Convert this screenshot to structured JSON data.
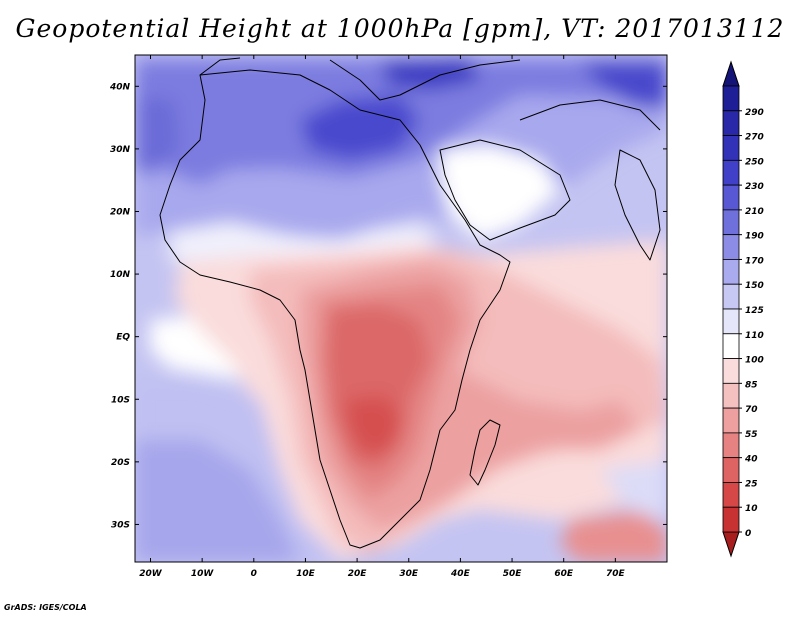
{
  "title": "Geopotential Height at 1000hPa [gpm], VT: 2017013112",
  "credit": "GrADS: IGES/COLA",
  "map": {
    "projection": "latlon",
    "lon_range": [
      -23,
      80
    ],
    "lat_range": [
      -36,
      45
    ],
    "lat_ticks": [
      {
        "value": 40,
        "label": "40N"
      },
      {
        "value": 30,
        "label": "30N"
      },
      {
        "value": 20,
        "label": "20N"
      },
      {
        "value": 10,
        "label": "10N"
      },
      {
        "value": 0,
        "label": "EQ"
      },
      {
        "value": -10,
        "label": "10S"
      },
      {
        "value": -20,
        "label": "20S"
      },
      {
        "value": -30,
        "label": "30S"
      }
    ],
    "lon_ticks": [
      {
        "value": -20,
        "label": "20W"
      },
      {
        "value": -10,
        "label": "10W"
      },
      {
        "value": 0,
        "label": "0"
      },
      {
        "value": 10,
        "label": "10E"
      },
      {
        "value": 20,
        "label": "20E"
      },
      {
        "value": 30,
        "label": "30E"
      },
      {
        "value": 40,
        "label": "40E"
      },
      {
        "value": 50,
        "label": "50E"
      },
      {
        "value": 60,
        "label": "60E"
      },
      {
        "value": 70,
        "label": "70E"
      }
    ]
  },
  "colorbar": {
    "levels": [
      {
        "label": "290",
        "color": "#1e1e96"
      },
      {
        "label": "270",
        "color": "#2828a8"
      },
      {
        "label": "250",
        "color": "#3232b8"
      },
      {
        "label": "230",
        "color": "#4040c8"
      },
      {
        "label": "210",
        "color": "#5858d4"
      },
      {
        "label": "190",
        "color": "#7070dc"
      },
      {
        "label": "170",
        "color": "#8c8ce6"
      },
      {
        "label": "150",
        "color": "#aaaaee"
      },
      {
        "label": "125",
        "color": "#c8c8f5"
      },
      {
        "label": "110",
        "color": "#e6e6fa"
      },
      {
        "label": "100",
        "color": "#ffffff"
      },
      {
        "label": "85",
        "color": "#fadcdc"
      },
      {
        "label": "70",
        "color": "#f5c0c0"
      },
      {
        "label": "55",
        "color": "#eea0a0"
      },
      {
        "label": "40",
        "color": "#e68282"
      },
      {
        "label": "25",
        "color": "#de6464"
      },
      {
        "label": "10",
        "color": "#d64848"
      },
      {
        "label": "0",
        "color": "#c83232"
      }
    ],
    "top_color": "#141478",
    "bottom_color": "#a81e1e"
  }
}
